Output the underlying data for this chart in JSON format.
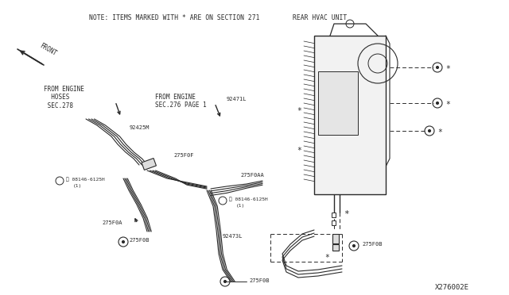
{
  "bg_color": "#ffffff",
  "line_color": "#2a2a2a",
  "text_color": "#2a2a2a",
  "note_text": "NOTE: ITEMS MARKED WITH * ARE ON SECTION 271",
  "rear_hvac_label": "REAR HVAC UNIT",
  "from_engine_hoses": "FROM ENGINE\n  HOSES\n SEC.278",
  "from_engine_sec276": "FROM ENGINE\nSEC.276 PAGE 1",
  "watermark": "X276002E",
  "figsize": [
    6.4,
    3.72
  ],
  "dpi": 100
}
